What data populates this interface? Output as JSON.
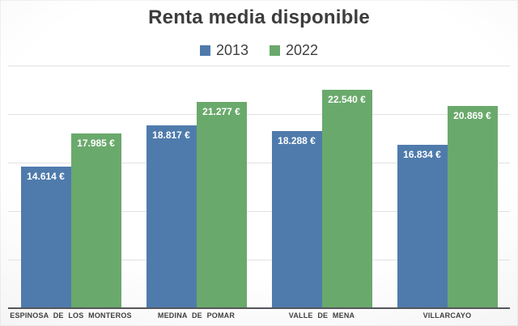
{
  "title": "Renta media disponible",
  "legend": [
    {
      "label": "2013",
      "color": "#4F7BAC"
    },
    {
      "label": "2022",
      "color": "#6AA96C"
    }
  ],
  "colors": {
    "series_2013": "#4F7BAC",
    "series_2022": "#6AA96C",
    "title_text": "#3d3d3d",
    "axis_line": "#55565a",
    "gridline": "#e1e1e1",
    "value_label_text": "#ffffff",
    "category_text": "#3f3f3f"
  },
  "chart_data": {
    "type": "bar",
    "title": "Renta media disponible",
    "categories": [
      "ESPINOSA DE LOS MONTEROS",
      "MEDINA DE POMAR",
      "VALLE DE MENA",
      "VILLARCAYO"
    ],
    "series": [
      {
        "name": "2013",
        "color": "#4F7BAC",
        "values": [
          14614,
          18817,
          18288,
          16834
        ],
        "labels": [
          "14.614 €",
          "18.817 €",
          "18.288 €",
          "16.834 €"
        ]
      },
      {
        "name": "2022",
        "color": "#6AA96C",
        "values": [
          17985,
          21277,
          22540,
          20869
        ],
        "labels": [
          "17.985 €",
          "21.277 €",
          "22.540 €",
          "20.869 €"
        ]
      }
    ],
    "xlabel": "",
    "ylabel": "",
    "ylim": [
      0,
      25000
    ],
    "grid_step": 5000,
    "grid": true,
    "y_axis_labels_visible": false,
    "legend_position": "top"
  }
}
